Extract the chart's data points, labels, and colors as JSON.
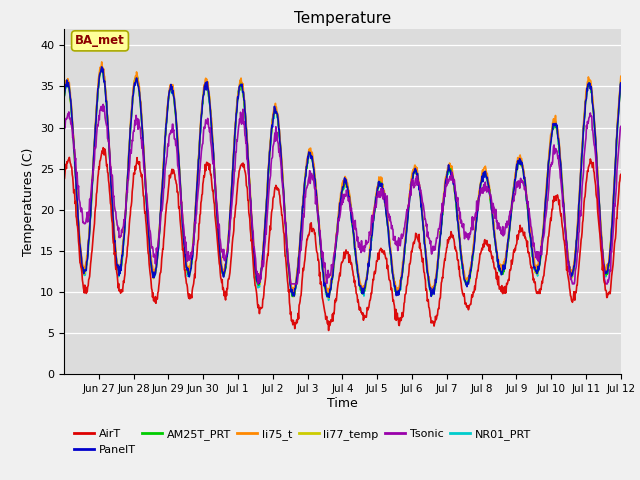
{
  "title": "Temperature",
  "ylabel": "Temperatures (C)",
  "xlabel": "Time",
  "annotation": "BA_met",
  "ylim": [
    0,
    42
  ],
  "xlim": [
    0,
    16
  ],
  "yticks": [
    0,
    5,
    10,
    15,
    20,
    25,
    30,
    35,
    40
  ],
  "background_color": "#dcdcdc",
  "fig_facecolor": "#f0f0f0",
  "series_colors": {
    "AirT": "#dd0000",
    "PanelT": "#0000cc",
    "AM25T_PRT": "#00cc00",
    "li75_t": "#ff8800",
    "li77_temp": "#cccc00",
    "Tsonic": "#9900aa",
    "NR01_PRT": "#00cccc"
  },
  "lw": 1.2,
  "x_tick_positions": [
    1,
    2,
    3,
    4,
    5,
    6,
    7,
    8,
    9,
    10,
    11,
    12,
    13,
    14,
    15,
    16
  ],
  "x_tick_labels": [
    "Jun 27",
    "Jun 28",
    "Jun 29",
    "Jun 30",
    "Jul 1",
    "Jul 2",
    "Jul 3",
    "Jul 4",
    "Jul 5",
    "Jul 6",
    "Jul 7",
    "Jul 8",
    "Jul 9",
    "Jul 10",
    "Jul 11",
    "Jul 12"
  ],
  "legend_row1": [
    "AirT",
    "PanelT",
    "AM25T_PRT",
    "li75_t",
    "li77_temp",
    "Tsonic"
  ],
  "legend_row2": [
    "NR01_PRT"
  ]
}
